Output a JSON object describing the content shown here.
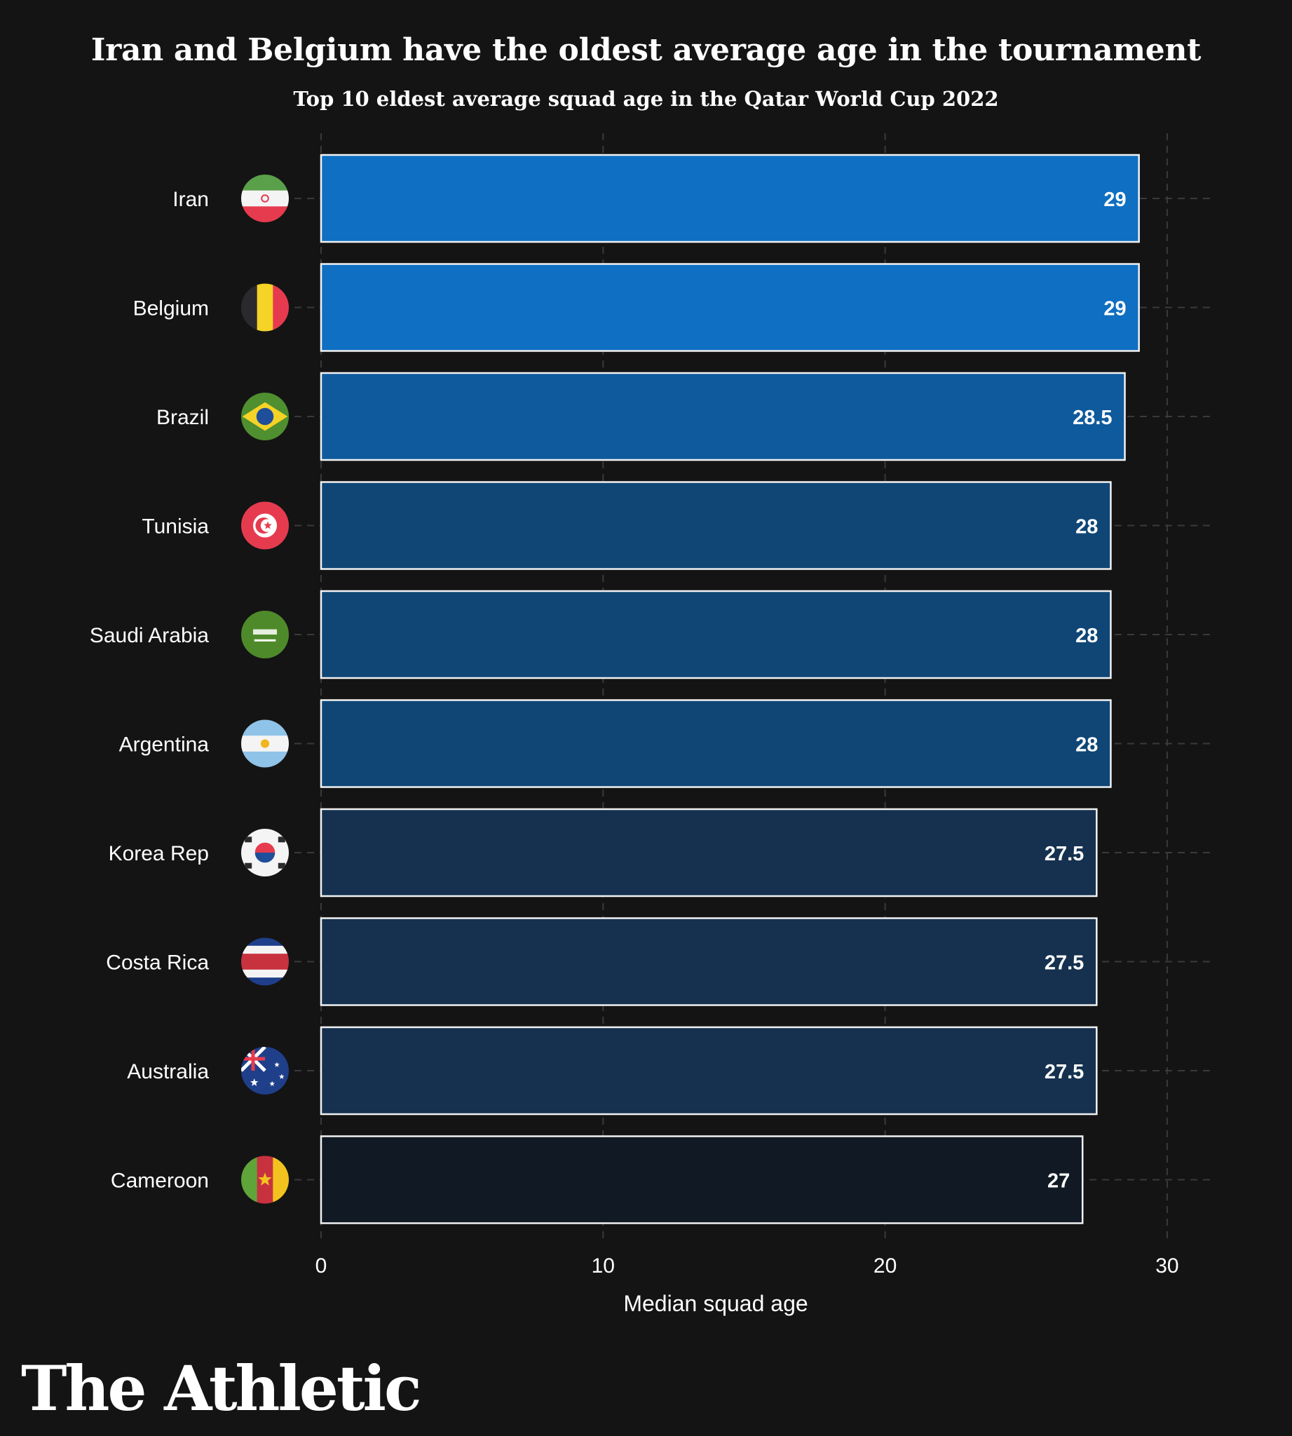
{
  "chart_data": {
    "type": "bar",
    "orientation": "horizontal",
    "title": "Iran and Belgium have the oldest average age in the tournament",
    "subtitle": "Top 10 eldest average squad age in the Qatar World Cup 2022",
    "categories": [
      "Iran",
      "Belgium",
      "Brazil",
      "Tunisia",
      "Saudi Arabia",
      "Argentina",
      "Korea Rep",
      "Costa Rica",
      "Australia",
      "Cameroon"
    ],
    "values": [
      29,
      29,
      28.5,
      28,
      28,
      28,
      27.5,
      27.5,
      27.5,
      27
    ],
    "value_labels": [
      "29",
      "29",
      "28.5",
      "28",
      "28",
      "28",
      "27.5",
      "27.5",
      "27.5",
      "27"
    ],
    "bar_colors": [
      "#0f6fc2",
      "#0f6fc2",
      "#0e5a9c",
      "#0f4675",
      "#0f4675",
      "#0f4675",
      "#15314f",
      "#15314f",
      "#15314f",
      "#111a24"
    ],
    "flag_icons": [
      "iran-flag-icon",
      "belgium-flag-icon",
      "brazil-flag-icon",
      "tunisia-flag-icon",
      "saudi-arabia-flag-icon",
      "argentina-flag-icon",
      "korea-rep-flag-icon",
      "costa-rica-flag-icon",
      "australia-flag-icon",
      "cameroon-flag-icon"
    ],
    "xlabel": "Median squad age",
    "xlim": [
      0,
      32
    ],
    "xticks": [
      0,
      10,
      20,
      30
    ],
    "grid": true,
    "legend": "none"
  },
  "brand": {
    "name": "The Athletic"
  }
}
